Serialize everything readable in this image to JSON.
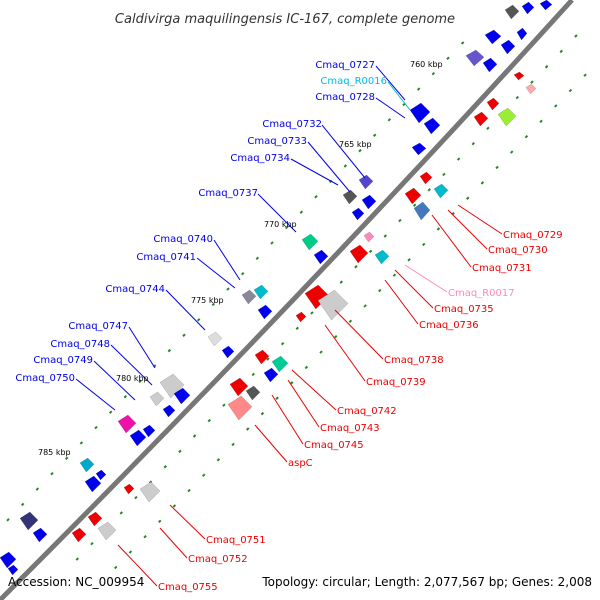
{
  "title": "Caldivirga maquilingensis IC-167, complete genome",
  "footer": {
    "accession": "Accession: NC_009954",
    "summary": "Topology: circular; Length: 2,077,567 bp; Genes: 2,008"
  },
  "colors": {
    "forward": "#0000ee",
    "reverse": "#ee0000",
    "rna_forward": "#00bbcc",
    "rna_reverse": "#ff88bb",
    "backbone": "#777777",
    "tick": "#228822"
  },
  "kbp_markers": [
    "760 kbp",
    "765 kbp",
    "770 kbp",
    "775 kbp",
    "780 kbp",
    "785 kbp"
  ],
  "left_labels": [
    {
      "name": "Cmaq_0727",
      "color": "#0000ee"
    },
    {
      "name": "Cmaq_R0016",
      "color": "#00bbdd"
    },
    {
      "name": "Cmaq_0728",
      "color": "#0000ee"
    },
    {
      "name": "Cmaq_0732",
      "color": "#0000ee"
    },
    {
      "name": "Cmaq_0733",
      "color": "#0000ee"
    },
    {
      "name": "Cmaq_0734",
      "color": "#0000ee"
    },
    {
      "name": "Cmaq_0737",
      "color": "#0000ee"
    },
    {
      "name": "Cmaq_0740",
      "color": "#0000ee"
    },
    {
      "name": "Cmaq_0741",
      "color": "#0000ee"
    },
    {
      "name": "Cmaq_0744",
      "color": "#0000ee"
    },
    {
      "name": "Cmaq_0747",
      "color": "#0000ee"
    },
    {
      "name": "Cmaq_0748",
      "color": "#0000ee"
    },
    {
      "name": "Cmaq_0749",
      "color": "#0000ee"
    },
    {
      "name": "Cmaq_0750",
      "color": "#0000ee"
    }
  ],
  "right_labels": [
    {
      "name": "Cmaq_0729",
      "color": "#ee0000"
    },
    {
      "name": "Cmaq_0730",
      "color": "#ee0000"
    },
    {
      "name": "Cmaq_0731",
      "color": "#ee0000"
    },
    {
      "name": "Cmaq_R0017",
      "color": "#ff88bb"
    },
    {
      "name": "Cmaq_0735",
      "color": "#ee0000"
    },
    {
      "name": "Cmaq_0736",
      "color": "#ee0000"
    },
    {
      "name": "Cmaq_0738",
      "color": "#ee0000"
    },
    {
      "name": "Cmaq_0739",
      "color": "#ee0000"
    },
    {
      "name": "Cmaq_0742",
      "color": "#ee0000"
    },
    {
      "name": "Cmaq_0743",
      "color": "#ee0000"
    },
    {
      "name": "Cmaq_0745",
      "color": "#ee0000"
    },
    {
      "name": "aspC",
      "color": "#ee0000"
    },
    {
      "name": "Cmaq_0751",
      "color": "#ee0000"
    },
    {
      "name": "Cmaq_0752",
      "color": "#ee0000"
    },
    {
      "name": "Cmaq_0755",
      "color": "#ee0000"
    }
  ]
}
